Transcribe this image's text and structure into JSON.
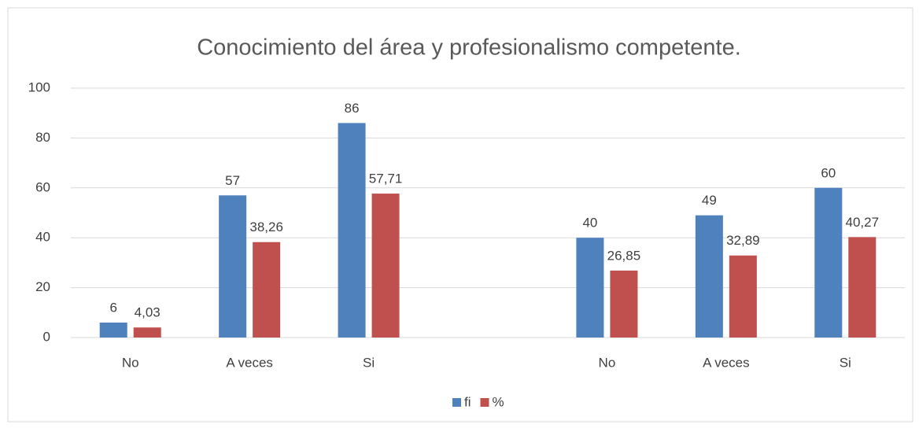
{
  "chart_data": {
    "type": "bar",
    "title": "Conocimiento del área y profesionalismo competente.",
    "categories": [
      "No",
      "A veces",
      "Si",
      null,
      "No",
      "A veces",
      "Si"
    ],
    "series": [
      {
        "name": "fi",
        "color": "#4f81bd",
        "values": [
          6,
          57,
          86,
          null,
          40,
          49,
          60
        ]
      },
      {
        "name": "%",
        "color": "#c0504d",
        "values": [
          4.03,
          38.26,
          57.71,
          null,
          26.85,
          32.89,
          40.27
        ],
        "value_labels": [
          "4,03",
          "38,26",
          "57,71",
          null,
          "26,85",
          "32,89",
          "40,27"
        ]
      }
    ],
    "ylim": [
      0,
      100
    ],
    "yticks": [
      0,
      20,
      40,
      60,
      80,
      100
    ],
    "grid": true,
    "legend": "bottom"
  }
}
